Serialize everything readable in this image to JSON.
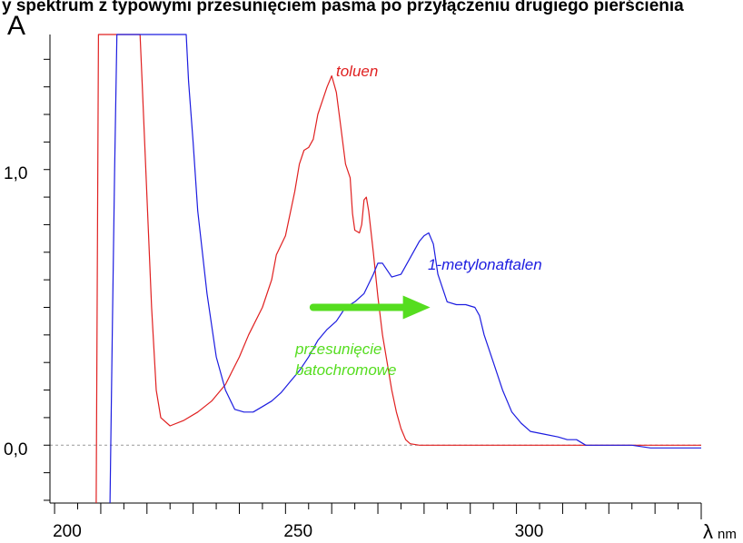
{
  "page_title_fragment": "y spektrum z typowymi przesunięciem pasma po przyłączeniu drugiego pierścienia",
  "chart_data": {
    "type": "line",
    "ylabel": "A",
    "xlabel_symbol": "λ",
    "xlabel_unit": "nm",
    "x_ticks": [
      "200",
      "250",
      "300"
    ],
    "y_ticks": [
      "1,0",
      "0,0"
    ],
    "xlim": [
      199,
      340
    ],
    "ylim": [
      -0.21,
      1.49
    ],
    "baseline_y": 0.0,
    "grid": false,
    "series": [
      {
        "name": "toluen",
        "color": "#e02020",
        "points": [
          [
            209,
            -0.22
          ],
          [
            209.5,
            1.49
          ],
          [
            218.5,
            1.49
          ],
          [
            219,
            1.3
          ],
          [
            220,
            0.9
          ],
          [
            221,
            0.5
          ],
          [
            222,
            0.2
          ],
          [
            223,
            0.1
          ],
          [
            225,
            0.07
          ],
          [
            228,
            0.09
          ],
          [
            231,
            0.12
          ],
          [
            234,
            0.16
          ],
          [
            237,
            0.22
          ],
          [
            240,
            0.32
          ],
          [
            242,
            0.4
          ],
          [
            245,
            0.5
          ],
          [
            247,
            0.6
          ],
          [
            248,
            0.69
          ],
          [
            250,
            0.76
          ],
          [
            252,
            0.92
          ],
          [
            253,
            1.02
          ],
          [
            254,
            1.07
          ],
          [
            255,
            1.08
          ],
          [
            256,
            1.11
          ],
          [
            257,
            1.2
          ],
          [
            258,
            1.25
          ],
          [
            259,
            1.3
          ],
          [
            260,
            1.34
          ],
          [
            261,
            1.28
          ],
          [
            262,
            1.15
          ],
          [
            263,
            1.02
          ],
          [
            264,
            0.97
          ],
          [
            264.5,
            0.84
          ],
          [
            265,
            0.78
          ],
          [
            266,
            0.77
          ],
          [
            266.5,
            0.8
          ],
          [
            267,
            0.89
          ],
          [
            267.5,
            0.9
          ],
          [
            268,
            0.85
          ],
          [
            269,
            0.7
          ],
          [
            270,
            0.54
          ],
          [
            271,
            0.4
          ],
          [
            272,
            0.3
          ],
          [
            273,
            0.2
          ],
          [
            274,
            0.12
          ],
          [
            275,
            0.06
          ],
          [
            276,
            0.02
          ],
          [
            277,
            0.005
          ],
          [
            279,
            0.0
          ],
          [
            290,
            0.0
          ],
          [
            310,
            0.0
          ],
          [
            330,
            0.0
          ],
          [
            340,
            0.0
          ]
        ]
      },
      {
        "name": "1-metylonaftalen",
        "color": "#1c1ce0",
        "points": [
          [
            212,
            -0.22
          ],
          [
            212.5,
            0.4
          ],
          [
            213,
            1.0
          ],
          [
            213.5,
            1.49
          ],
          [
            228.5,
            1.49
          ],
          [
            229,
            1.32
          ],
          [
            230,
            1.1
          ],
          [
            231,
            0.85
          ],
          [
            233,
            0.55
          ],
          [
            235,
            0.32
          ],
          [
            237,
            0.2
          ],
          [
            239,
            0.13
          ],
          [
            241,
            0.12
          ],
          [
            243,
            0.12
          ],
          [
            245,
            0.14
          ],
          [
            247,
            0.16
          ],
          [
            249,
            0.19
          ],
          [
            251,
            0.23
          ],
          [
            253,
            0.27
          ],
          [
            255,
            0.32
          ],
          [
            257,
            0.38
          ],
          [
            259,
            0.42
          ],
          [
            261,
            0.45
          ],
          [
            263,
            0.5
          ],
          [
            265,
            0.52
          ],
          [
            267,
            0.55
          ],
          [
            269,
            0.62
          ],
          [
            270,
            0.66
          ],
          [
            271,
            0.66
          ],
          [
            273,
            0.61
          ],
          [
            275,
            0.62
          ],
          [
            277,
            0.68
          ],
          [
            279,
            0.74
          ],
          [
            280,
            0.76
          ],
          [
            281,
            0.77
          ],
          [
            282,
            0.73
          ],
          [
            283,
            0.62
          ],
          [
            285,
            0.52
          ],
          [
            287,
            0.51
          ],
          [
            289,
            0.51
          ],
          [
            291,
            0.5
          ],
          [
            292,
            0.47
          ],
          [
            293,
            0.4
          ],
          [
            295,
            0.3
          ],
          [
            297,
            0.2
          ],
          [
            299,
            0.12
          ],
          [
            301,
            0.08
          ],
          [
            303,
            0.05
          ],
          [
            306,
            0.04
          ],
          [
            309,
            0.03
          ],
          [
            311,
            0.02
          ],
          [
            313,
            0.02
          ],
          [
            315,
            0.0
          ],
          [
            320,
            0.0
          ],
          [
            325,
            0.0
          ],
          [
            329,
            -0.01
          ],
          [
            335,
            -0.01
          ],
          [
            340,
            -0.01
          ]
        ]
      }
    ],
    "annotations": [
      {
        "text": "toluen",
        "color": "#e02020"
      },
      {
        "text": "1-metylonaftalen",
        "color": "#1c1ce0"
      },
      {
        "text_line1": "przesunięcie",
        "text_line2": "batochromowe",
        "color": "#55dd1f"
      }
    ],
    "arrow": {
      "color": "#55dd1f",
      "from_x": 256,
      "to_x": 277,
      "y": 0.5
    }
  }
}
